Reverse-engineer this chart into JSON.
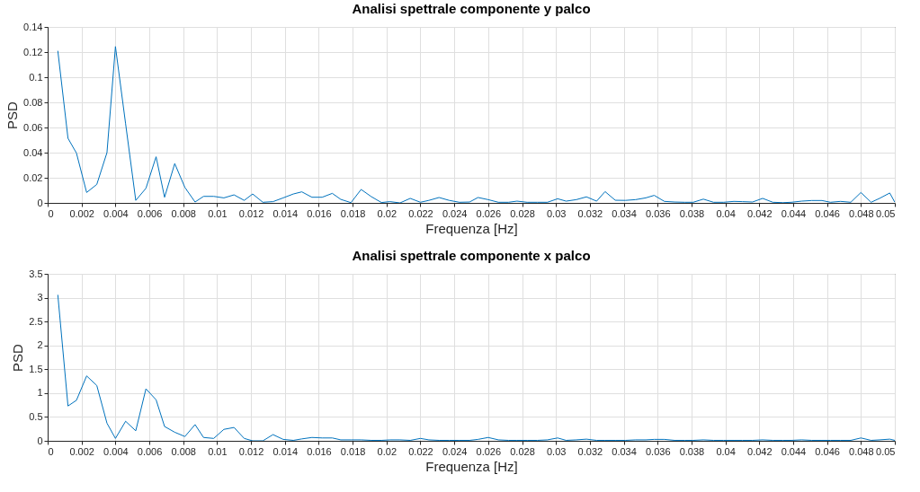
{
  "chart_data": [
    {
      "type": "line",
      "title": "Analisi spettrale componente y palco",
      "xlabel": "Frequenza [Hz]",
      "ylabel": "PSD",
      "grid": true,
      "marker": "none",
      "line_style": "solid",
      "x": [
        0.0006,
        0.0012,
        0.0017,
        0.0023,
        0.0029,
        0.0035,
        0.004,
        0.0046,
        0.0052,
        0.0058,
        0.0064,
        0.0069,
        0.0075,
        0.0081,
        0.0087,
        0.0092,
        0.0098,
        0.0104,
        0.011,
        0.0116,
        0.0121,
        0.0127,
        0.0133,
        0.0139,
        0.0145,
        0.015,
        0.0156,
        0.0162,
        0.0168,
        0.0173,
        0.0179,
        0.0185,
        0.0191,
        0.0197,
        0.0202,
        0.0208,
        0.0214,
        0.022,
        0.0225,
        0.0231,
        0.0237,
        0.0243,
        0.0249,
        0.0254,
        0.026,
        0.0266,
        0.0272,
        0.0277,
        0.0283,
        0.0289,
        0.0295,
        0.0301,
        0.0306,
        0.0312,
        0.0318,
        0.0324,
        0.0329,
        0.0335,
        0.0341,
        0.0347,
        0.0353,
        0.0358,
        0.0364,
        0.037,
        0.0376,
        0.0381,
        0.0387,
        0.0393,
        0.0399,
        0.0405,
        0.041,
        0.0416,
        0.0422,
        0.0428,
        0.0434,
        0.0439,
        0.0445,
        0.0451,
        0.0457,
        0.0462,
        0.0468,
        0.0474,
        0.048,
        0.0486,
        0.0491,
        0.0497,
        0.05
      ],
      "xlim": [
        0,
        0.05
      ],
      "xticks": [
        0,
        0.002,
        0.004,
        0.006,
        0.008,
        0.01,
        0.012,
        0.014,
        0.016,
        0.018,
        0.02,
        0.022,
        0.024,
        0.026,
        0.028,
        0.03,
        0.032,
        0.034,
        0.036,
        0.038,
        0.04,
        0.042,
        0.044,
        0.046,
        0.048,
        0.05
      ],
      "ylim": [
        0,
        0.14
      ],
      "yticks": [
        0,
        0.02,
        0.04,
        0.06,
        0.08,
        0.1,
        0.12,
        0.14
      ],
      "series": [
        {
          "color": "#0072bd",
          "values": [
            0.121,
            0.0514,
            0.0396,
            0.0083,
            0.0147,
            0.04,
            0.1244,
            0.063,
            0.002,
            0.0116,
            0.0367,
            0.0045,
            0.0313,
            0.0123,
            0.0007,
            0.0052,
            0.0052,
            0.004,
            0.0064,
            0.002,
            0.0071,
            0.0005,
            0.001,
            0.004,
            0.0071,
            0.0088,
            0.0045,
            0.0045,
            0.0076,
            0.0028,
            0.0002,
            0.0107,
            0.005,
            0.0003,
            0.001,
            0,
            0.0036,
            0.0005,
            0.002,
            0.0043,
            0.002,
            0.0005,
            0.0007,
            0.0043,
            0.0026,
            0.0005,
            0.0005,
            0.0014,
            0.0005,
            0.0005,
            0.0005,
            0.0033,
            0.0014,
            0.0026,
            0.0048,
            0.0014,
            0.009,
            0.0021,
            0.002,
            0.0026,
            0.004,
            0.006,
            0.0012,
            0.0007,
            0.0005,
            0.0005,
            0.003,
            0.0005,
            0.0005,
            0.0012,
            0.001,
            0.0007,
            0.0036,
            0.0005,
            0.0002,
            0.0005,
            0.0014,
            0.0019,
            0.0019,
            0.0005,
            0.0012,
            0.0005,
            0.0083,
            0.0005,
            0.0036,
            0.0079,
            0.0005
          ]
        }
      ]
    },
    {
      "type": "line",
      "title": "Analisi spettrale componente x palco",
      "xlabel": "Frequenza [Hz]",
      "ylabel": "PSD",
      "grid": true,
      "marker": "none",
      "line_style": "solid",
      "x": [
        0.0006,
        0.0012,
        0.0017,
        0.0023,
        0.0029,
        0.0035,
        0.004,
        0.0046,
        0.0052,
        0.0058,
        0.0064,
        0.0069,
        0.0075,
        0.0081,
        0.0087,
        0.0092,
        0.0098,
        0.0104,
        0.011,
        0.0116,
        0.0121,
        0.0127,
        0.0133,
        0.0139,
        0.0145,
        0.015,
        0.0156,
        0.0162,
        0.0168,
        0.0173,
        0.0179,
        0.0185,
        0.0191,
        0.0197,
        0.0202,
        0.0208,
        0.0214,
        0.022,
        0.0225,
        0.0231,
        0.0237,
        0.0243,
        0.0249,
        0.0254,
        0.026,
        0.0266,
        0.0272,
        0.0277,
        0.0283,
        0.0289,
        0.0295,
        0.0301,
        0.0306,
        0.0312,
        0.0318,
        0.0324,
        0.0329,
        0.0335,
        0.0341,
        0.0347,
        0.0353,
        0.0358,
        0.0364,
        0.037,
        0.0376,
        0.0381,
        0.0387,
        0.0393,
        0.0399,
        0.0405,
        0.041,
        0.0416,
        0.0422,
        0.0428,
        0.0434,
        0.0439,
        0.0445,
        0.0451,
        0.0457,
        0.0462,
        0.0468,
        0.0474,
        0.048,
        0.0486,
        0.0491,
        0.0497,
        0.05
      ],
      "xlim": [
        0,
        0.05
      ],
      "xticks": [
        0,
        0.002,
        0.004,
        0.006,
        0.008,
        0.01,
        0.012,
        0.014,
        0.016,
        0.018,
        0.02,
        0.022,
        0.024,
        0.026,
        0.028,
        0.03,
        0.032,
        0.034,
        0.036,
        0.038,
        0.04,
        0.042,
        0.044,
        0.046,
        0.048,
        0.05
      ],
      "ylim": [
        0,
        3.5
      ],
      "yticks": [
        0,
        0.5,
        1,
        1.5,
        2,
        2.5,
        3,
        3.5
      ],
      "series": [
        {
          "color": "#0072bd",
          "values": [
            3.06,
            0.73,
            0.85,
            1.36,
            1.16,
            0.37,
            0.05,
            0.41,
            0.21,
            1.09,
            0.86,
            0.3,
            0.18,
            0.09,
            0.34,
            0.07,
            0.05,
            0.24,
            0.28,
            0.05,
            0,
            0,
            0.13,
            0.03,
            0.01,
            0.04,
            0.07,
            0.06,
            0.06,
            0.02,
            0.02,
            0.02,
            0.01,
            0.01,
            0.02,
            0.02,
            0.01,
            0.05,
            0.02,
            0.01,
            0.01,
            0.01,
            0.01,
            0.03,
            0.07,
            0.02,
            0.01,
            0.01,
            0.01,
            0.01,
            0.02,
            0.06,
            0.01,
            0.02,
            0.035,
            0.01,
            0.01,
            0.01,
            0.01,
            0.02,
            0.02,
            0.03,
            0.03,
            0.01,
            0.01,
            0.01,
            0.02,
            0.01,
            0.01,
            0.01,
            0.01,
            0.01,
            0.02,
            0.01,
            0.01,
            0.01,
            0.02,
            0.01,
            0.01,
            0.01,
            0.01,
            0.01,
            0.06,
            0.01,
            0.02,
            0.035,
            0.01
          ]
        }
      ]
    }
  ]
}
